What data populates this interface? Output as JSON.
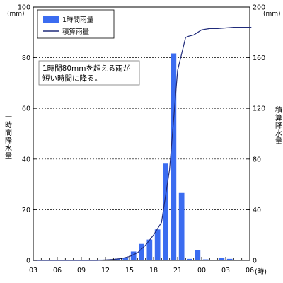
{
  "chart_data": {
    "type": "bar+line",
    "left_unit": "(mm)",
    "right_unit": "(mm)",
    "left_axis_title": "一時間降水量",
    "right_axis_title": "積算降水量",
    "x_unit": "(時)",
    "left_ylim": [
      0,
      100
    ],
    "right_ylim": [
      0,
      200
    ],
    "left_ticks": [
      "0",
      "20",
      "40",
      "60",
      "80",
      "100"
    ],
    "right_ticks": [
      "0",
      "40",
      "80",
      "120",
      "160",
      "200"
    ],
    "x_tick_labels": [
      "03",
      "06",
      "09",
      "12",
      "15",
      "18",
      "21",
      "00",
      "03",
      "06"
    ],
    "hour_offsets_of_ticks": [
      0,
      3,
      6,
      9,
      12,
      15,
      18,
      21,
      24,
      27
    ],
    "gridlines": [
      20,
      40,
      60,
      80
    ],
    "legend": {
      "bar": "1時間雨量",
      "line": "積算雨量"
    },
    "annotation": [
      "1時間80mmを超える雨が",
      "短い時間に降る。"
    ],
    "colors": {
      "bar": "#3b6cf0",
      "line": "#1f2a7a"
    },
    "hourly_series": {
      "name": "1時間雨量",
      "hour_offsets": [
        9,
        10,
        11,
        12,
        13,
        14,
        15,
        16,
        17,
        18,
        19,
        20,
        21,
        22,
        23,
        24,
        25,
        26,
        27
      ],
      "values": [
        0.3,
        0.4,
        0.7,
        1.0,
        3.5,
        6.5,
        8.2,
        12.2,
        38.2,
        81.7,
        26.6,
        0.6,
        4.0,
        0.4,
        0.0,
        1.0,
        0.6,
        0.0,
        0.0
      ]
    },
    "cumulative_series": {
      "name": "積算雨量",
      "hour_offsets": [
        0,
        8,
        9,
        10,
        11,
        12,
        13,
        14,
        15,
        16,
        17,
        18,
        19,
        19.4,
        20,
        21,
        22,
        23,
        24,
        25,
        26,
        27,
        28
      ],
      "values": [
        0,
        0,
        0.4,
        0.8,
        1.5,
        3,
        6,
        12,
        20,
        30,
        72,
        150,
        176,
        177,
        178,
        182,
        183,
        183,
        183.5,
        184,
        184,
        184,
        184
      ]
    }
  }
}
